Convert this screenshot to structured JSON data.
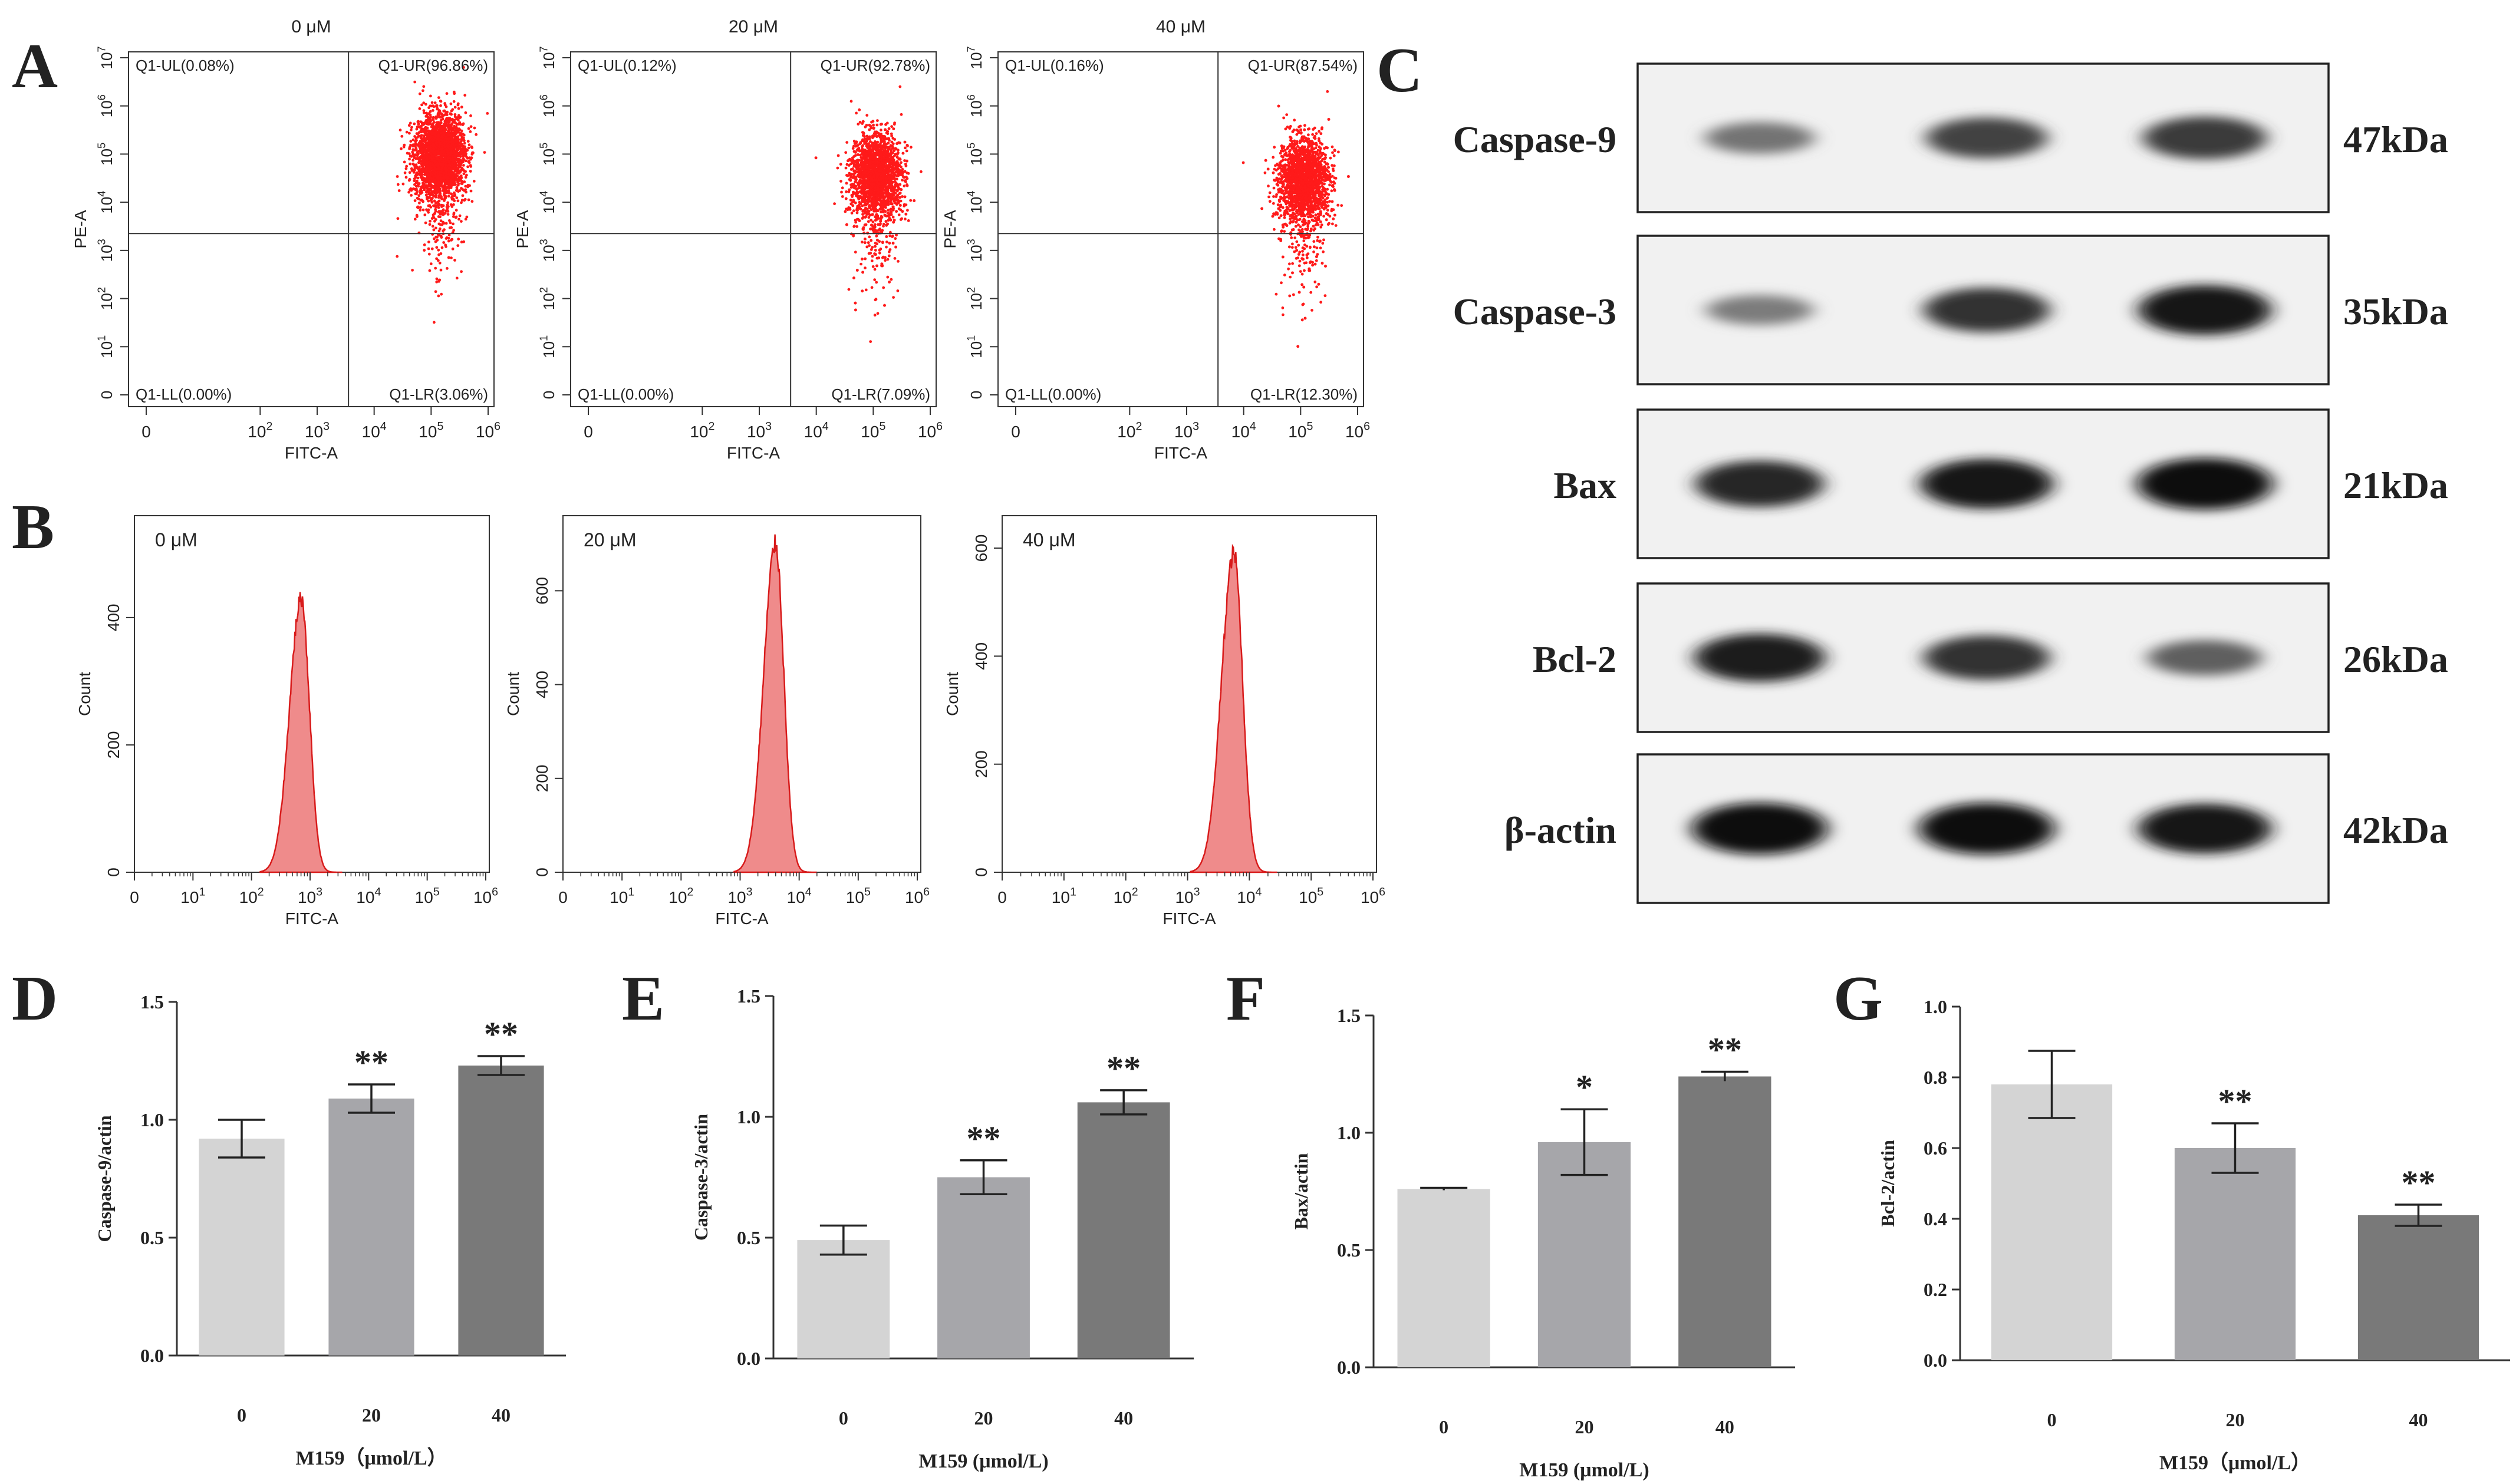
{
  "colors": {
    "dot": "#ff1a1a",
    "hist_fill": "#ef8b8b",
    "hist_line": "#d81b1b",
    "bar_light": "#d4d4d4",
    "bar_mid": "#a6a6aa",
    "bar_dark": "#797979",
    "axis": "#333333"
  },
  "panel_letters": {
    "a": "A",
    "b": "B",
    "c": "C",
    "d": "D",
    "e": "E",
    "f": "F",
    "g": "G"
  },
  "flow_axis": {
    "x_label": "FITC-A",
    "y_label": "PE-A",
    "count_label": "Count",
    "x_ticks": [
      "0",
      "10",
      "10",
      "10",
      "10",
      "10"
    ],
    "x_exps": [
      "",
      "2",
      "3",
      "4",
      "5",
      "6"
    ],
    "y_ticks": [
      "0",
      "10",
      "10",
      "10",
      "10",
      "10",
      "10",
      "10"
    ],
    "y_exps": [
      "",
      "1",
      "2",
      "3",
      "4",
      "5",
      "6",
      "7"
    ],
    "hist_x_ticks": [
      "0",
      "10",
      "10",
      "10",
      "10",
      "10",
      "10"
    ],
    "hist_x_exps": [
      "",
      "1",
      "2",
      "3",
      "4",
      "5",
      "6"
    ]
  },
  "chart_data": [
    {
      "panel": "A",
      "type": "scatter",
      "description_free": true,
      "x_scale": "log (FITC-A)",
      "y_scale": "log (PE-A)",
      "plots": [
        {
          "title": "0 μM",
          "quadrants": {
            "UL": "Q1-UL(0.08%)",
            "UR": "Q1-UR(96.86%)",
            "LL": "Q1-LL(0.00%)",
            "LR": "Q1-LR(3.06%)"
          },
          "cluster_center_log": [
            5.15,
            5.0
          ]
        },
        {
          "title": "20 μM",
          "quadrants": {
            "UL": "Q1-UL(0.12%)",
            "UR": "Q1-UR(92.78%)",
            "LL": "Q1-LL(0.00%)",
            "LR": "Q1-LR(7.09%)"
          },
          "cluster_center_log": [
            5.05,
            4.6
          ]
        },
        {
          "title": "40 μM",
          "quadrants": {
            "UL": "Q1-UL(0.16%)",
            "UR": "Q1-UR(87.54%)",
            "LL": "Q1-LL(0.00%)",
            "LR": "Q1-LR(12.30%)"
          },
          "cluster_center_log": [
            5.05,
            4.5
          ]
        }
      ]
    },
    {
      "panel": "B",
      "type": "area",
      "xlabel": "FITC-A",
      "ylabel": "Count",
      "plots": [
        {
          "title": "0 μM",
          "peak_log_x": 2.85,
          "peak_count": 430,
          "ylim": [
            0,
            560
          ],
          "yticks": [
            "0",
            "200",
            "400"
          ],
          "ytick_values": [
            0,
            200,
            400
          ]
        },
        {
          "title": "20 μM",
          "peak_log_x": 3.6,
          "peak_count": 700,
          "ylim": [
            0,
            760
          ],
          "yticks": [
            "0",
            "200",
            "400",
            "600"
          ],
          "ytick_values": [
            0,
            200,
            400,
            600
          ]
        },
        {
          "title": "40 μM",
          "peak_log_x": 3.75,
          "peak_count": 590,
          "ylim": [
            0,
            660
          ],
          "yticks": [
            "0",
            "200",
            "400",
            "600"
          ],
          "ytick_values": [
            0,
            200,
            400,
            600
          ]
        }
      ]
    },
    {
      "panel": "C",
      "type": "table",
      "rows": [
        {
          "protein": "Caspase-9",
          "size": "47kDa",
          "intensities": [
            0.45,
            0.7,
            0.75
          ]
        },
        {
          "protein": "Caspase-3",
          "size": "35kDa",
          "intensities": [
            0.4,
            0.8,
            0.95
          ]
        },
        {
          "protein": "Bax",
          "size": "21kDa",
          "intensities": [
            0.85,
            0.95,
            1.0
          ]
        },
        {
          "protein": "Bcl-2",
          "size": "26kDa",
          "intensities": [
            0.9,
            0.8,
            0.55
          ]
        },
        {
          "protein": "β-actin",
          "size": "42kDa",
          "intensities": [
            1.0,
            1.0,
            0.95
          ]
        }
      ]
    },
    {
      "panel": "D",
      "type": "bar",
      "xlabel": "M159（μmol/L）",
      "ylabel": "Caspase-9/actin",
      "categories": [
        "0",
        "20",
        "40"
      ],
      "values": [
        0.92,
        1.09,
        1.23
      ],
      "errors": [
        0.08,
        0.06,
        0.04
      ],
      "sig": [
        "",
        "**",
        "**"
      ],
      "ylim": [
        0,
        1.5
      ],
      "yticks": [
        "0.0",
        "0.5",
        "1.0",
        "1.5"
      ],
      "ytick_values": [
        0,
        0.5,
        1.0,
        1.5
      ]
    },
    {
      "panel": "E",
      "type": "bar",
      "xlabel": "M159 (μmol/L)",
      "ylabel": "Caspase-3/actin",
      "categories": [
        "0",
        "20",
        "40"
      ],
      "values": [
        0.49,
        0.75,
        1.06
      ],
      "errors": [
        0.06,
        0.07,
        0.05
      ],
      "sig": [
        "",
        "**",
        "**"
      ],
      "ylim": [
        0,
        1.5
      ],
      "yticks": [
        "0.0",
        "0.5",
        "1.0",
        "1.5"
      ],
      "ytick_values": [
        0,
        0.5,
        1.0,
        1.5
      ]
    },
    {
      "panel": "F",
      "type": "bar",
      "xlabel": "M159 (μmol/L)",
      "ylabel": "Bax/actin",
      "categories": [
        "0",
        "20",
        "40"
      ],
      "values": [
        0.76,
        0.96,
        1.24
      ],
      "errors": [
        0.005,
        0.14,
        0.02
      ],
      "sig": [
        "",
        "*",
        "**"
      ],
      "ylim": [
        0,
        1.5
      ],
      "yticks": [
        "0.0",
        "0.5",
        "1.0",
        "1.5"
      ],
      "ytick_values": [
        0,
        0.5,
        1.0,
        1.5
      ]
    },
    {
      "panel": "G",
      "type": "bar",
      "xlabel": "M159（μmol/L）",
      "ylabel": "Bcl-2/actin",
      "categories": [
        "0",
        "20",
        "40"
      ],
      "values": [
        0.78,
        0.6,
        0.41
      ],
      "errors": [
        0.095,
        0.07,
        0.03
      ],
      "sig": [
        "",
        "**",
        "**"
      ],
      "ylim": [
        0,
        1.0
      ],
      "yticks": [
        "0.0",
        "0.2",
        "0.4",
        "0.6",
        "0.8",
        "1.0"
      ],
      "ytick_values": [
        0,
        0.2,
        0.4,
        0.6,
        0.8,
        1.0
      ]
    }
  ]
}
